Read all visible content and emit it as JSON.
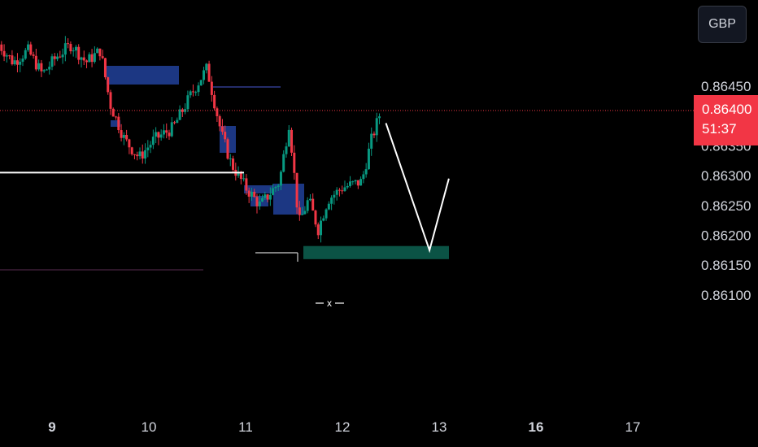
{
  "toolbar": {
    "currency_label": "GBP"
  },
  "price_axis": {
    "labels": [
      "0.86450",
      "0.86350",
      "0.86300",
      "0.86250",
      "0.86200",
      "0.86150",
      "0.86100"
    ],
    "current_price": "0.86400",
    "countdown": "51:37"
  },
  "time_axis": {
    "labels": [
      {
        "text": "9",
        "bold": true
      },
      {
        "text": "10",
        "bold": false
      },
      {
        "text": "11",
        "bold": false
      },
      {
        "text": "12",
        "bold": false
      },
      {
        "text": "13",
        "bold": false
      },
      {
        "text": "16",
        "bold": true
      },
      {
        "text": "17",
        "bold": false
      }
    ]
  },
  "annotations": {
    "low_marker": "x"
  },
  "colors": {
    "background": "#000000",
    "bull": "#089981",
    "bear": "#f23645",
    "order_block": "#1e3a8a",
    "target_zone": "#0b5345",
    "projection": "#ffffff",
    "current_price_line": "#f23645"
  },
  "chart_data": {
    "type": "candlestick",
    "instrument_currency": "GBP",
    "ylim": [
      0.8607,
      0.865
    ],
    "current_price": 0.864,
    "horizontal_level": 0.86305,
    "target_zone": [
      0.8616,
      0.86182
    ],
    "projection_path": [
      {
        "day": 12.45,
        "price": 0.86388
      },
      {
        "day": 12.9,
        "price": 0.86175
      },
      {
        "day": 13.1,
        "price": 0.86295
      }
    ],
    "ohlc_path": [
      [
        8.45,
        0.8652
      ],
      [
        8.6,
        0.8649
      ],
      [
        8.75,
        0.8651
      ],
      [
        8.9,
        0.8647
      ],
      [
        9.05,
        0.865
      ],
      [
        9.2,
        0.8652
      ],
      [
        9.35,
        0.8649
      ],
      [
        9.5,
        0.8651
      ],
      [
        9.6,
        0.8642
      ],
      [
        9.75,
        0.8636
      ],
      [
        9.9,
        0.8633
      ],
      [
        10.05,
        0.8636
      ],
      [
        10.25,
        0.8638
      ],
      [
        10.45,
        0.8644
      ],
      [
        10.6,
        0.8648
      ],
      [
        10.75,
        0.8637
      ],
      [
        10.85,
        0.8632
      ],
      [
        11.0,
        0.8628
      ],
      [
        11.15,
        0.8625
      ],
      [
        11.35,
        0.8629
      ],
      [
        11.45,
        0.8639
      ],
      [
        11.55,
        0.8622
      ],
      [
        11.65,
        0.8626
      ],
      [
        11.75,
        0.8621
      ],
      [
        11.85,
        0.8626
      ],
      [
        12.0,
        0.8628
      ],
      [
        12.2,
        0.8629
      ],
      [
        12.3,
        0.8636
      ],
      [
        12.4,
        0.8641
      ]
    ]
  }
}
